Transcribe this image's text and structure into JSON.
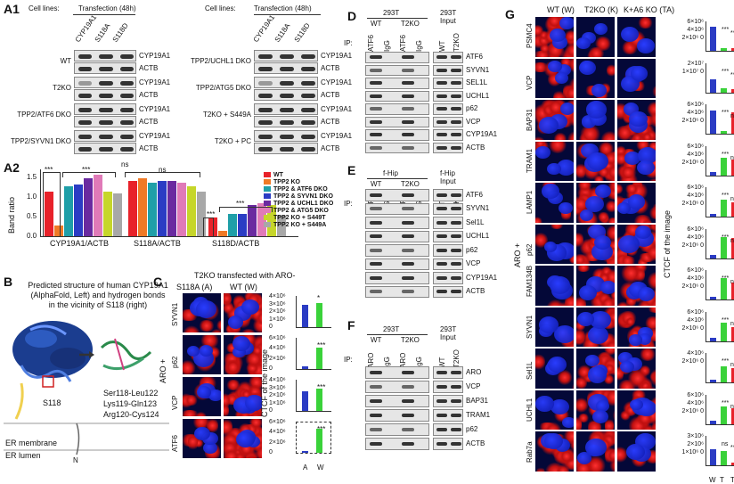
{
  "panelA1": {
    "label": "A1",
    "cell_lines": "Cell lines:",
    "transfection": "Transfection  (48h)",
    "cols": [
      "CYP19A1",
      "S118A",
      "S118D"
    ],
    "left_rows": [
      "WT",
      "T2KO",
      "TPP2/ATF6  DKO",
      "TPP2/SYVN1 DKO"
    ],
    "right_rows": [
      "TPP2/UCHL1  DKO",
      "TPP2/ATG5  DKO",
      "T2KO + S449A",
      "T2KO + PC"
    ],
    "blot_labels": [
      "CYP19A1",
      "ACTB"
    ]
  },
  "panelA2": {
    "label": "A2",
    "ylabel": "Band ratio",
    "yticks": [
      "1.5",
      "1.0",
      "0.5",
      "0.0"
    ],
    "xcats": [
      "CYP19A1/ACTB",
      "S118A/ACTB",
      "S118D/ACTB"
    ],
    "sig": [
      "***",
      "***",
      "ns",
      "ns",
      "***",
      "***"
    ],
    "legend": [
      {
        "name": "WT",
        "color": "#e8222a"
      },
      {
        "name": "TPP2 KO",
        "color": "#f07a26"
      },
      {
        "name": "TPP2 & ATF6 DKO",
        "color": "#1f9fa8"
      },
      {
        "name": "TPP2 & SYVN1 DKO",
        "color": "#2b3cc4"
      },
      {
        "name": "TPP2 & UCHL1 DKO",
        "color": "#6a2aa0"
      },
      {
        "name": "TPP2 & ATG5 DKO",
        "color": "#e07ab8"
      },
      {
        "name": "TPP2 KO + S449T",
        "color": "#c6d62a"
      },
      {
        "name": "TPP2 KO + S449A",
        "color": "#a8a8a8"
      }
    ]
  },
  "chart_data": {
    "type": "bar",
    "categories": [
      "CYP19A1/ACTB",
      "S118A/ACTB",
      "S118D/ACTB"
    ],
    "series": [
      {
        "name": "WT",
        "values": [
          1.2,
          1.5,
          0.5
        ]
      },
      {
        "name": "TPP2 KO",
        "values": [
          0.3,
          1.55,
          0.15
        ]
      },
      {
        "name": "TPP2 & ATF6 DKO",
        "values": [
          1.35,
          1.45,
          0.6
        ]
      },
      {
        "name": "TPP2 & SYVN1 DKO",
        "values": [
          1.4,
          1.5,
          0.6
        ]
      },
      {
        "name": "TPP2 & UCHL1 DKO",
        "values": [
          1.55,
          1.5,
          0.85
        ]
      },
      {
        "name": "TPP2 & ATG5 DKO",
        "values": [
          1.65,
          1.45,
          0.88
        ]
      },
      {
        "name": "TPP2 KO + S449T",
        "values": [
          1.2,
          1.35,
          0.85
        ]
      },
      {
        "name": "TPP2 KO + S449A",
        "values": [
          1.15,
          1.2,
          0.55
        ]
      }
    ],
    "ylabel": "Band ratio",
    "ylim": [
      0,
      1.8
    ]
  },
  "panelB": {
    "label": "B",
    "caption": "Predicted structure of human CYP19A1  (AlphaFold, Left) and hydrogen bonds in the vicinity of S118  (right)",
    "s118": "S118",
    "bonds": [
      "Ser118-Leu122",
      "Lys119-Gln123",
      "Arg120-Cys124"
    ],
    "er_membrane": "ER  membrane",
    "er_lumen": "ER  lumen",
    "n": "N"
  },
  "panelC": {
    "label": "C",
    "title": "T2KO transfected with ARO-",
    "cols": [
      "S118A (A)",
      "WT (W)"
    ],
    "rows": [
      "SYVN1",
      "p62",
      "VCP",
      "ATF6"
    ],
    "side": "ARO +",
    "ctcf": "CTCF  of the image",
    "sig": [
      "*",
      "***",
      "***",
      "***"
    ],
    "ticks": [
      [
        "4×10⁶",
        "3×10⁶",
        "2×10⁶",
        "1×10⁶",
        "0"
      ],
      [
        "6×10⁶",
        "4×10⁶",
        "2×10⁶",
        "0"
      ],
      [
        "4×10⁶",
        "3×10⁶",
        "2×10⁶",
        "1×10⁶",
        "0"
      ],
      [
        "6×10⁶",
        "4×10⁶",
        "2×10⁶",
        "0"
      ]
    ],
    "xl": [
      "A",
      "W"
    ]
  },
  "panelD": {
    "label": "D",
    "cell": "293T",
    "input": "293T Input",
    "wt": "WT",
    "t2ko": "T2KO",
    "ip": "IP:",
    "lanes": [
      "ATF6",
      "IgG",
      "ATF6",
      "IgG"
    ],
    "in_lanes": [
      "WT",
      "T2KO"
    ],
    "rows": [
      "ATF6",
      "SYVN1",
      "SEL1L",
      "UCHL1",
      "p62",
      "VCP",
      "CYP19A1",
      "ACTB"
    ]
  },
  "panelE": {
    "label": "E",
    "cell": "f-Hip",
    "input": "f-Hip Input",
    "wt": "WT",
    "t2ko": "T2KO",
    "ip": "IP:",
    "lanes": [
      "ATF6",
      "IgG",
      "ATF6",
      "IgG"
    ],
    "in_lanes": [
      "WT",
      "T2KO"
    ],
    "rows": [
      "ATF6",
      "SYVN1",
      "Sel1L",
      "UCHL1",
      "p62",
      "VCP",
      "CYP19A1",
      "ACTB"
    ]
  },
  "panelF": {
    "label": "F",
    "cell": "293T",
    "input": "293T Input",
    "wt": "WT",
    "t2ko": "T2KO",
    "ip": "IP:",
    "lanes": [
      "ARO",
      "IgG",
      "ARO",
      "IgG"
    ],
    "in_lanes": [
      "WT",
      "T2KO"
    ],
    "rows": [
      "ARO",
      "VCP",
      "BAP31",
      "TRAM1",
      "p62",
      "ACTB"
    ]
  },
  "panelG": {
    "label": "G",
    "cols": [
      "WT (W)",
      "T2KO  (K)",
      "K+A6 KO  (TA)"
    ],
    "rows": [
      "PSMC4",
      "VCP",
      "BAP31",
      "TRAM1",
      "LAMP1",
      "p62",
      "FAM134B",
      "SYVN1",
      "Sel1L",
      "UCHL1",
      "Rab7a"
    ],
    "side": "ARO +",
    "ctcf": "CTCF  of the image",
    "xl": [
      "W",
      "T",
      "TA"
    ],
    "ticks": [
      "6×10⁶ 4×10⁶ 2×10⁶ 0",
      "2×10⁷ 1×10⁷ 0",
      "6×10⁶ 4×10⁶ 2×10⁶ 0",
      "6×10⁶ 4×10⁶ 2×10⁶ 0",
      "6×10⁶ 4×10⁶ 2×10⁶ 0",
      "6×10⁶ 4×10⁶ 2×10⁶ 0",
      "6×10⁶ 4×10⁶ 2×10⁶ 0",
      "6×10⁶ 4×10⁶ 2×10⁶ 0",
      "4×10⁶ 2×10⁶ 0",
      "6×10⁶ 4×10⁶ 2×10⁶ 0",
      "3×10⁶ 2×10⁶ 1×10⁶ 0"
    ],
    "sig": [
      [
        "***",
        "***"
      ],
      [
        "***",
        "***"
      ],
      [
        "***",
        "ns"
      ],
      [
        "***",
        "ns"
      ],
      [
        "***",
        "ns"
      ],
      [
        "***",
        "ns"
      ],
      [
        "***",
        "ns"
      ],
      [
        "***",
        "ns"
      ],
      [
        "***",
        "ns"
      ],
      [
        "***",
        "ns"
      ],
      [
        "ns",
        "***"
      ]
    ],
    "vals": [
      [
        0.85,
        0.1,
        0.1
      ],
      [
        0.45,
        0.15,
        0.1
      ],
      [
        0.8,
        0.1,
        0.75
      ],
      [
        0.1,
        0.6,
        0.55
      ],
      [
        0.1,
        0.6,
        0.5
      ],
      [
        0.1,
        0.75,
        0.7
      ],
      [
        0.1,
        0.75,
        0.6
      ],
      [
        0.1,
        0.65,
        0.5
      ],
      [
        0.1,
        0.55,
        0.5
      ],
      [
        0.1,
        0.6,
        0.55
      ],
      [
        0.55,
        0.5,
        0.1
      ]
    ]
  }
}
